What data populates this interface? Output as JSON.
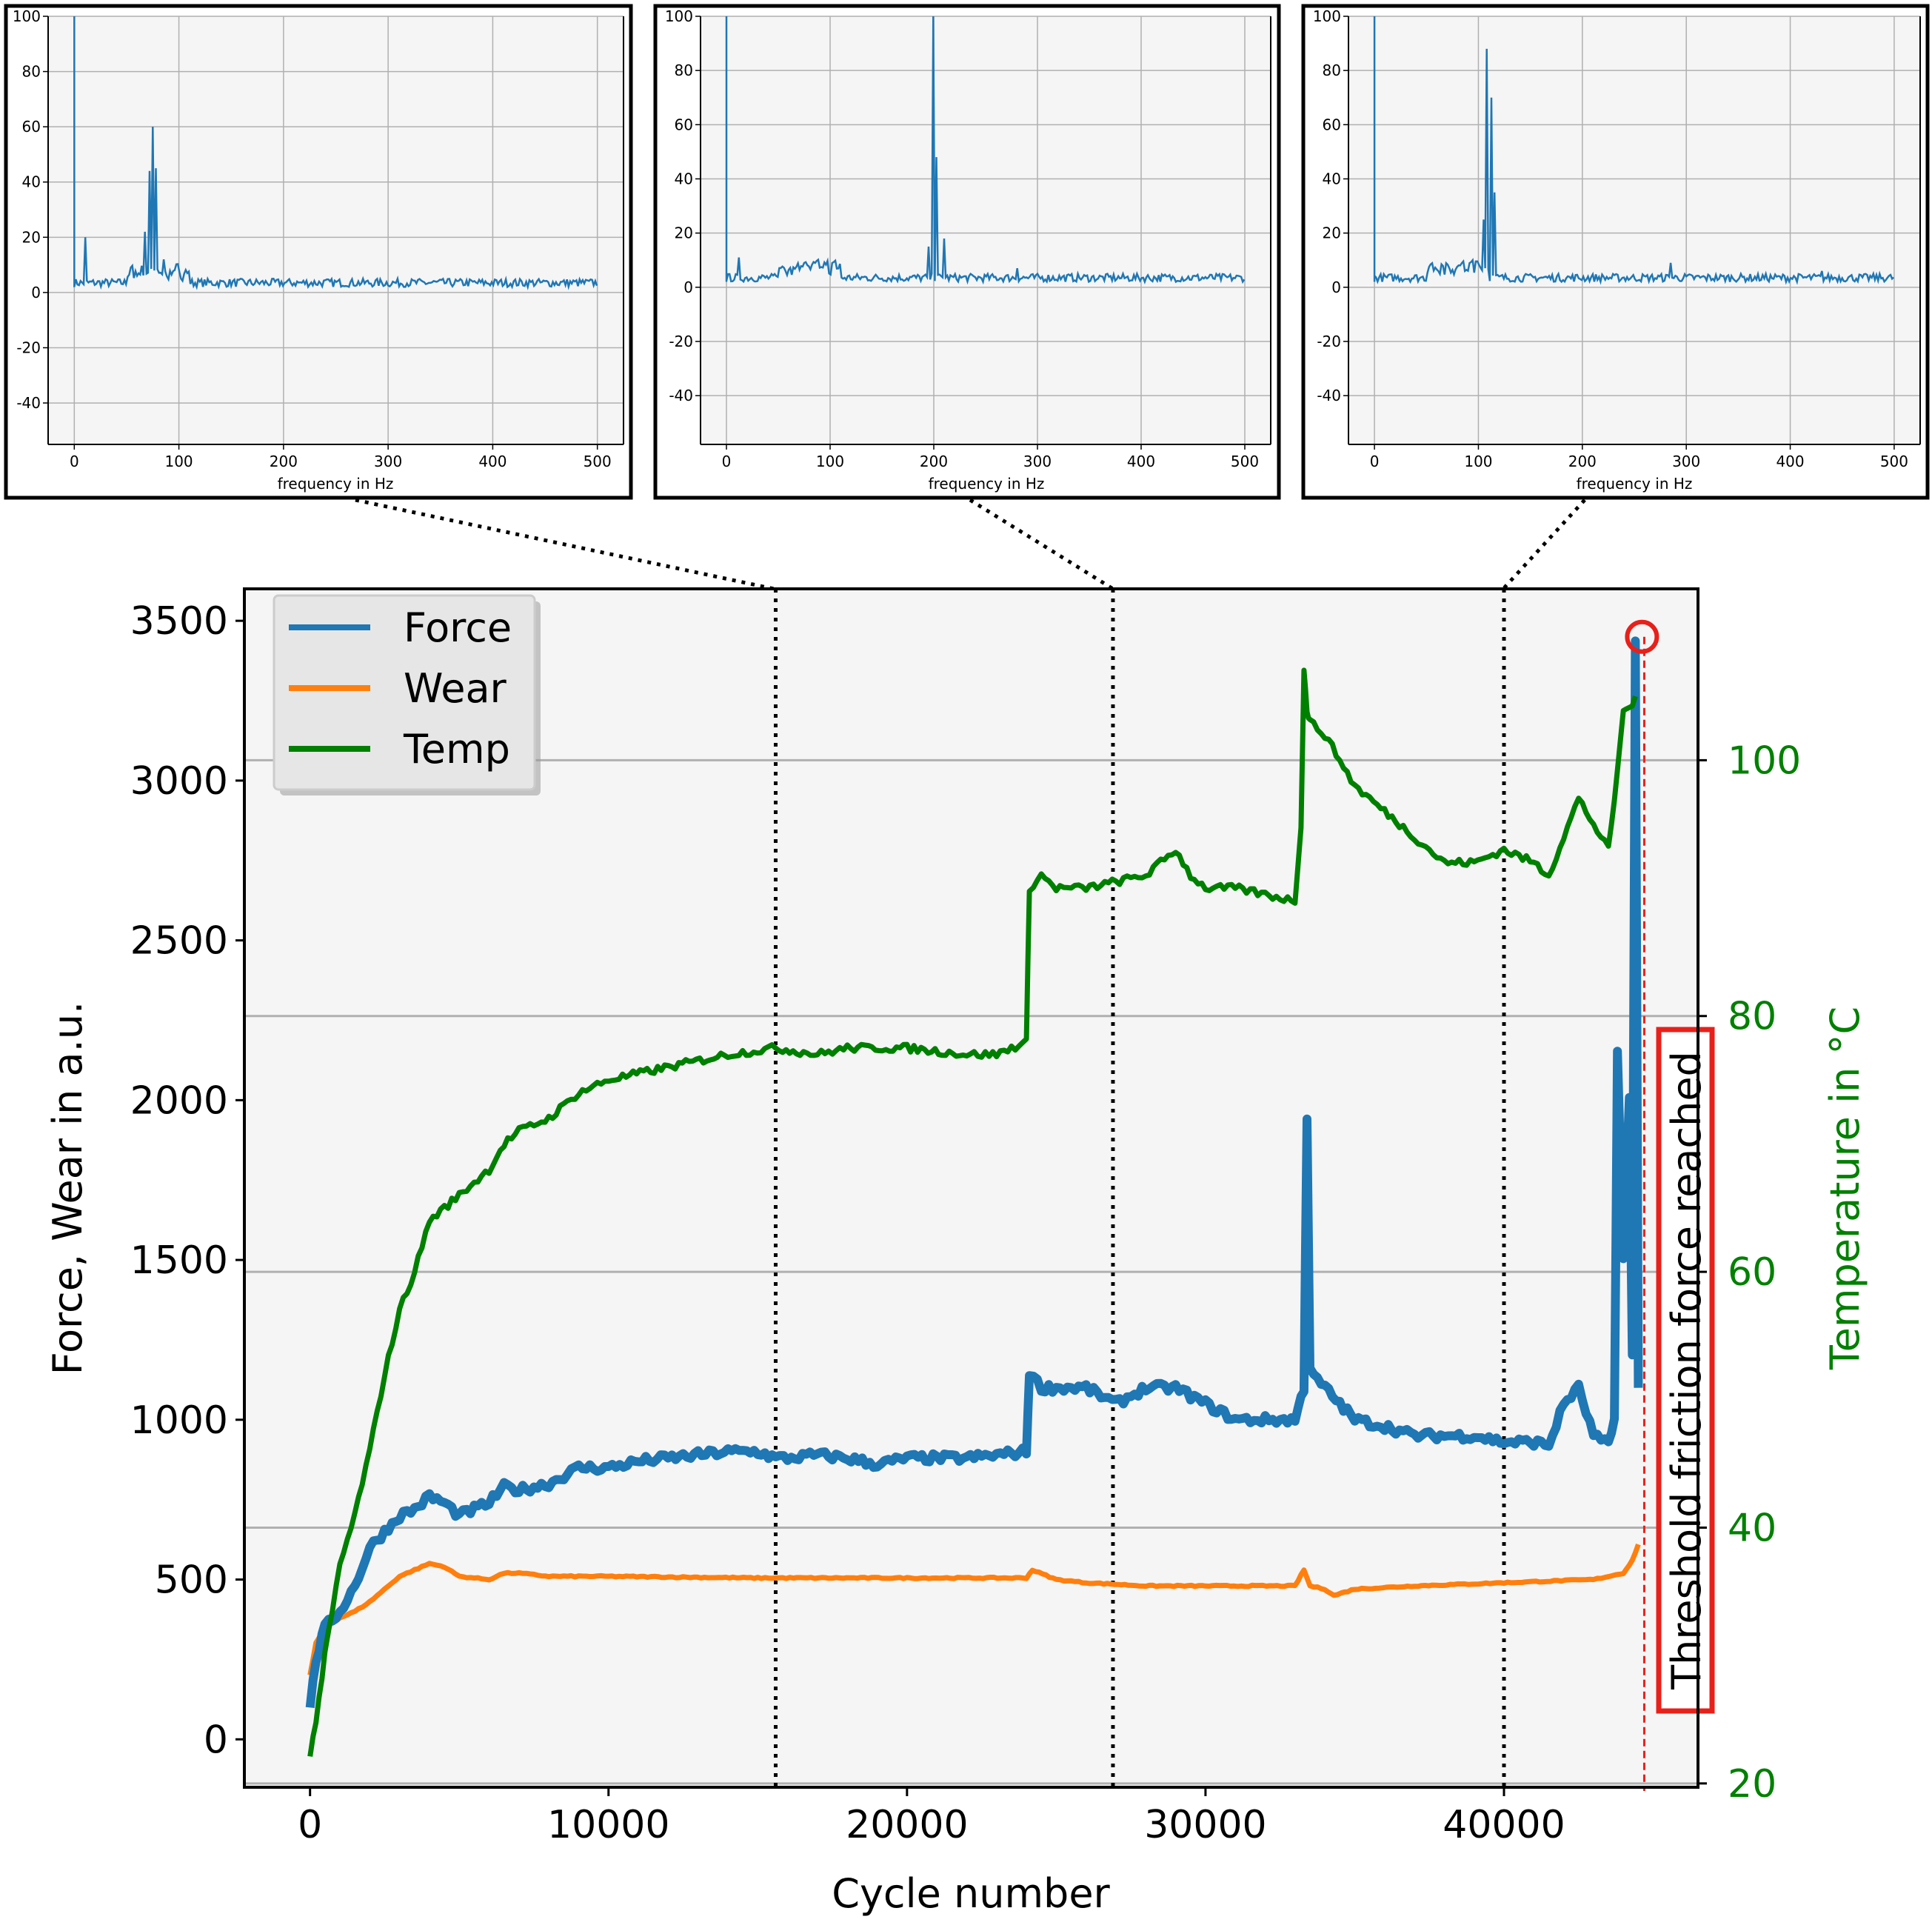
{
  "colors": {
    "force": "#1f77b4",
    "wear": "#ff7f0e",
    "temp": "#008000",
    "spectrum": "#1f77b4",
    "grid": "#b0b0b0",
    "panel_bg": "#f5f5f5",
    "threshold": "#e8201a"
  },
  "chart_data": [
    {
      "id": "spectrum-1",
      "type": "line",
      "xlabel": "frequency in Hz",
      "xlim": [
        -25,
        525
      ],
      "ylim": [
        -55,
        100
      ],
      "xticks": [
        0,
        100,
        200,
        300,
        400,
        500
      ],
      "yticks": [
        -40,
        -20,
        0,
        20,
        40,
        60,
        80,
        100
      ],
      "grid": true,
      "peaks": [
        [
          0,
          100
        ],
        [
          10,
          20
        ],
        [
          68,
          22
        ],
        [
          72,
          44
        ],
        [
          75,
          60
        ],
        [
          78,
          45
        ],
        [
          85,
          12
        ]
      ],
      "baseline": 2
    },
    {
      "id": "spectrum-2",
      "type": "line",
      "xlabel": "frequency in Hz",
      "xlim": [
        -25,
        525
      ],
      "ylim": [
        -58,
        100
      ],
      "xticks": [
        0,
        100,
        200,
        300,
        400,
        500
      ],
      "yticks": [
        -40,
        -20,
        0,
        20,
        40,
        60,
        80,
        100
      ],
      "grid": true,
      "peaks": [
        [
          0,
          100
        ],
        [
          12,
          11
        ],
        [
          75,
          9
        ],
        [
          195,
          15
        ],
        [
          200,
          100
        ],
        [
          202,
          48
        ],
        [
          210,
          18
        ],
        [
          280,
          7
        ]
      ],
      "baseline": 2
    },
    {
      "id": "spectrum-3",
      "type": "line",
      "xlabel": "frequency in Hz",
      "xlim": [
        -25,
        525
      ],
      "ylim": [
        -58,
        100
      ],
      "xticks": [
        0,
        100,
        200,
        300,
        400,
        500
      ],
      "yticks": [
        -40,
        -20,
        0,
        20,
        40,
        60,
        80,
        100
      ],
      "grid": true,
      "peaks": [
        [
          0,
          100
        ],
        [
          95,
          10
        ],
        [
          105,
          25
        ],
        [
          108,
          88
        ],
        [
          112,
          70
        ],
        [
          115,
          35
        ],
        [
          285,
          9
        ],
        [
          430,
          6
        ]
      ],
      "baseline": 2
    },
    {
      "id": "main",
      "type": "line",
      "xlabel": "Cycle number",
      "ylabel": "Force, Wear in a.u.",
      "y2label": "Temperature in °C",
      "xlim": [
        -2200,
        46500
      ],
      "ylim": [
        -150,
        3600
      ],
      "y2lim": [
        19.7,
        113.4
      ],
      "xticks": [
        0,
        10000,
        20000,
        30000,
        40000
      ],
      "yticks": [
        0,
        500,
        1000,
        1500,
        2000,
        2500,
        3000,
        3500
      ],
      "y2ticks": [
        20,
        40,
        60,
        80,
        100
      ],
      "grid": "y2",
      "legend": {
        "position": "top-left",
        "entries": [
          "Force",
          "Wear",
          "Temp"
        ]
      },
      "marker_lines_x": [
        15600,
        26900,
        40000
      ],
      "threshold_x": 44700,
      "threshold_value": 3450,
      "threshold_label": "Threshold friction force reached",
      "series": [
        {
          "name": "Force",
          "x": [
            0,
            200,
            500,
            1000,
            1500,
            2000,
            2500,
            3000,
            3500,
            4000,
            4500,
            5000,
            5500,
            6000,
            6500,
            7000,
            8000,
            9000,
            10000,
            11000,
            12000,
            13000,
            14000,
            15000,
            15600,
            16000,
            17000,
            18000,
            19000,
            20000,
            21000,
            22000,
            23000,
            24000,
            24100,
            24500,
            25000,
            26000,
            27000,
            28000,
            29000,
            30000,
            31000,
            32000,
            33000,
            33300,
            33400,
            33500,
            34000,
            35000,
            36000,
            37000,
            38000,
            39000,
            40000,
            41000,
            41500,
            42000,
            42500,
            43000,
            43500,
            43700,
            43800,
            44000,
            44200,
            44300,
            44400,
            44500
          ],
          "y": [
            100,
            250,
            350,
            400,
            480,
            600,
            650,
            700,
            720,
            760,
            740,
            700,
            720,
            740,
            790,
            780,
            800,
            850,
            850,
            870,
            880,
            890,
            900,
            900,
            880,
            880,
            890,
            880,
            860,
            880,
            880,
            880,
            890,
            900,
            1150,
            1100,
            1100,
            1100,
            1050,
            1100,
            1100,
            1050,
            1000,
            1000,
            1000,
            1100,
            1950,
            1150,
            1100,
            1000,
            980,
            950,
            950,
            950,
            930,
            930,
            920,
            1050,
            1100,
            950,
            920,
            1000,
            2150,
            1500,
            2000,
            1200,
            3450,
            1100
          ]
        },
        {
          "name": "Wear",
          "x": [
            0,
            200,
            500,
            1000,
            1500,
            2000,
            2500,
            3000,
            3500,
            4000,
            4500,
            5000,
            6000,
            6500,
            7000,
            8000,
            9000,
            10000,
            15000,
            20000,
            24000,
            24200,
            25000,
            26000,
            28000,
            30000,
            33000,
            33300,
            33500,
            34000,
            34300,
            35000,
            37000,
            40000,
            43000,
            44000,
            44300,
            44500
          ],
          "y": [
            200,
            300,
            350,
            380,
            400,
            430,
            470,
            510,
            530,
            550,
            540,
            510,
            500,
            520,
            520,
            510,
            510,
            510,
            505,
            505,
            505,
            530,
            500,
            490,
            480,
            480,
            480,
            530,
            480,
            470,
            450,
            470,
            480,
            490,
            500,
            520,
            560,
            610
          ]
        },
        {
          "name": "Temp",
          "x": [
            0,
            200,
            500,
            1000,
            1500,
            2000,
            2500,
            3000,
            3500,
            4000,
            4500,
            5000,
            6000,
            6500,
            7000,
            8000,
            9000,
            10000,
            12000,
            14000,
            15600,
            17000,
            18000,
            20000,
            22000,
            23000,
            24000,
            24100,
            24500,
            25000,
            26000,
            27000,
            28000,
            29000,
            29500,
            30000,
            31000,
            32000,
            33000,
            33200,
            33300,
            33400,
            33500,
            34000,
            35000,
            36000,
            37000,
            38000,
            39000,
            40000,
            41000,
            41500,
            42000,
            42500,
            43000,
            43500,
            43800,
            44000,
            44200,
            44400
          ],
          "y": [
            22,
            25,
            30,
            37,
            41,
            46,
            52,
            57,
            60,
            64,
            65,
            66,
            68,
            70,
            71,
            72,
            74,
            75,
            76,
            77,
            77.5,
            77,
            77.5,
            77.5,
            77,
            77,
            78,
            90,
            91,
            90,
            90,
            90.5,
            91,
            93,
            91,
            90,
            90,
            89.5,
            89,
            95,
            107,
            104,
            103,
            102,
            98,
            96,
            94,
            92,
            92,
            93,
            92,
            91,
            94,
            97,
            95,
            93,
            99,
            104,
            104,
            105
          ]
        }
      ]
    }
  ]
}
